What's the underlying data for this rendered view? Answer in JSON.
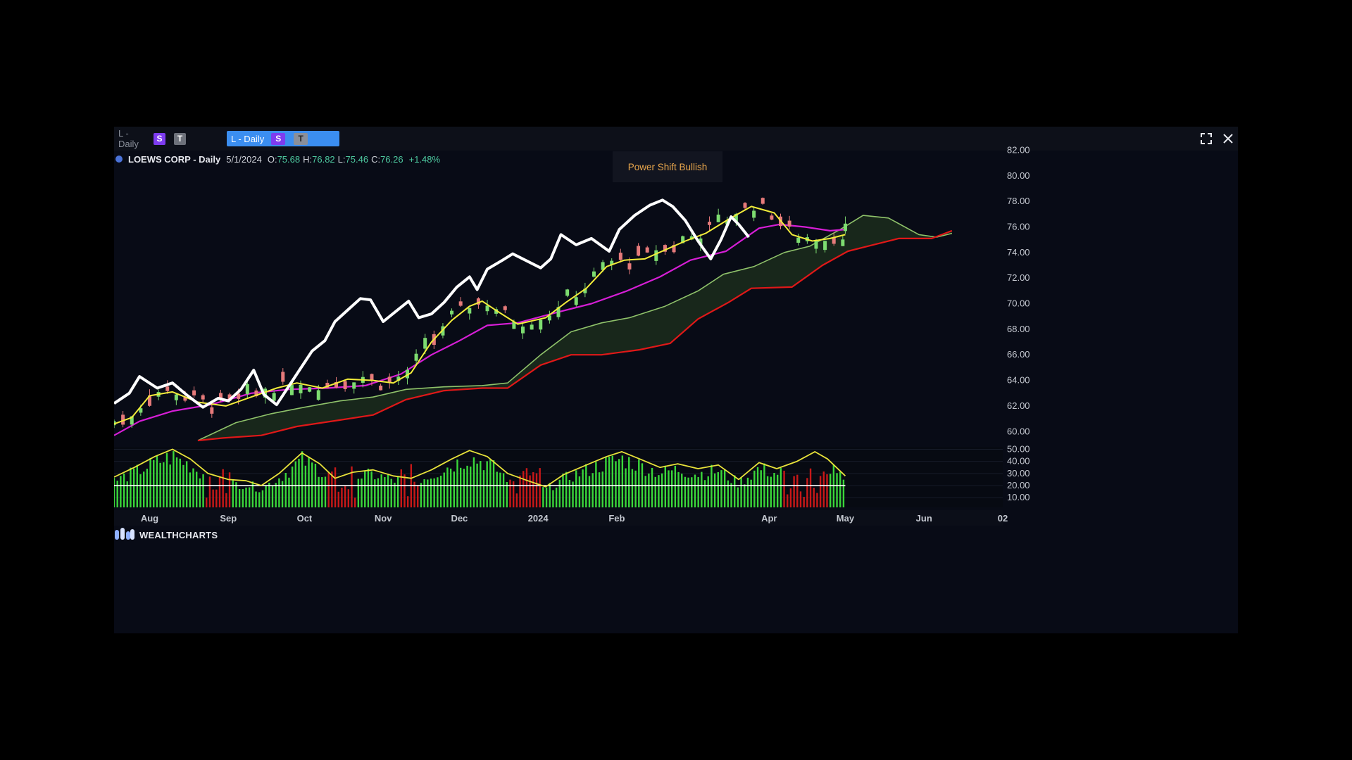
{
  "tabs": [
    {
      "label": "L - Daily",
      "badge_s": "S",
      "badge_t": "T",
      "active": false
    },
    {
      "label": "L - Daily",
      "badge_s": "S",
      "badge_t": "T",
      "active": true
    }
  ],
  "window_controls": {
    "maximize_icon": "maximize-icon",
    "close_icon": "close-icon"
  },
  "info": {
    "name": "LOEWS CORP - Daily",
    "date": "5/1/2024",
    "open_label": "O:",
    "open": "75.68",
    "high_label": "H:",
    "high": "76.82",
    "low_label": "L:",
    "low": "75.46",
    "close_label": "C:",
    "close": "76.26",
    "change": "+1.48%"
  },
  "signal_box": "Power Shift Bullish",
  "logo_text": "WEALTHCHARTS",
  "colors": {
    "background": "#080b16",
    "candle_up": "#7ddc70",
    "candle_down": "#e67a7a",
    "line_white": "#ffffff",
    "line_yellow": "#f2ec3a",
    "line_magenta": "#d61ed6",
    "cloud_upper": "#8fc26a",
    "cloud_lower": "#e01818",
    "cloud_fill": "#1b2a1c",
    "osc_yellow": "#e8e23a",
    "osc_green": "#3ad63a",
    "osc_red": "#c81818"
  },
  "chart_data": [
    {
      "type": "candlestick",
      "title": "",
      "x_ticks": [
        "Aug",
        "Sep",
        "Oct",
        "Nov",
        "Dec",
        "2024",
        "Feb",
        "Apr",
        "May",
        "Jun",
        "02"
      ],
      "y_ticks": [
        "82.00",
        "80.00",
        "78.00",
        "76.00",
        "74.00",
        "72.00",
        "70.00",
        "68.00",
        "66.00",
        "64.00",
        "62.00",
        "60.00"
      ],
      "ylim": [
        59.3,
        82.3
      ],
      "x_range": [
        "2023-07-18",
        "2024-07-02"
      ],
      "series": [
        {
          "style": "white-line",
          "points": [
            [
              "2023-07-18",
              62.2
            ],
            [
              "2023-07-24",
              63.0
            ],
            [
              "2023-07-28",
              64.3
            ],
            [
              "2023-08-04",
              63.4
            ],
            [
              "2023-08-10",
              63.8
            ],
            [
              "2023-08-16",
              62.8
            ],
            [
              "2023-08-22",
              61.9
            ],
            [
              "2023-08-28",
              62.6
            ],
            [
              "2023-09-01",
              62.4
            ],
            [
              "2023-09-06",
              63.3
            ],
            [
              "2023-09-11",
              64.8
            ],
            [
              "2023-09-15",
              62.9
            ],
            [
              "2023-09-20",
              62.1
            ],
            [
              "2023-09-25",
              63.6
            ],
            [
              "2023-09-29",
              64.8
            ],
            [
              "2023-10-04",
              66.3
            ],
            [
              "2023-10-09",
              67.1
            ],
            [
              "2023-10-13",
              68.6
            ],
            [
              "2023-10-18",
              69.5
            ],
            [
              "2023-10-23",
              70.4
            ],
            [
              "2023-10-27",
              70.3
            ],
            [
              "2023-11-01",
              68.6
            ],
            [
              "2023-11-06",
              69.4
            ],
            [
              "2023-11-11",
              70.2
            ],
            [
              "2023-11-15",
              68.9
            ],
            [
              "2023-11-20",
              69.2
            ],
            [
              "2023-11-25",
              70.1
            ],
            [
              "2023-11-30",
              71.3
            ],
            [
              "2023-12-05",
              72.1
            ],
            [
              "2023-12-08",
              71.1
            ],
            [
              "2023-12-12",
              72.7
            ],
            [
              "2023-12-18",
              73.4
            ],
            [
              "2023-12-22",
              73.9
            ],
            [
              "2024-01-02",
              72.8
            ],
            [
              "2024-01-06",
              73.5
            ],
            [
              "2024-01-10",
              75.4
            ],
            [
              "2024-01-16",
              74.6
            ],
            [
              "2024-01-22",
              75.1
            ],
            [
              "2024-01-29",
              74.1
            ],
            [
              "2024-02-02",
              75.8
            ],
            [
              "2024-02-08",
              76.9
            ],
            [
              "2024-02-14",
              77.7
            ],
            [
              "2024-02-19",
              78.1
            ],
            [
              "2024-02-23",
              77.6
            ],
            [
              "2024-02-28",
              76.5
            ],
            [
              "2024-03-04",
              74.9
            ],
            [
              "2024-03-09",
              73.5
            ],
            [
              "2024-03-13",
              75.0
            ],
            [
              "2024-03-17",
              76.8
            ],
            [
              "2024-03-20",
              76.2
            ],
            [
              "2024-03-24",
              75.2
            ]
          ]
        },
        {
          "style": "yellow-line",
          "points": [
            [
              "2023-07-18",
              60.6
            ],
            [
              "2023-07-25",
              61.1
            ],
            [
              "2023-08-01",
              62.8
            ],
            [
              "2023-08-10",
              63.1
            ],
            [
              "2023-08-20",
              62.3
            ],
            [
              "2023-08-31",
              62.0
            ],
            [
              "2023-09-10",
              62.7
            ],
            [
              "2023-09-20",
              63.4
            ],
            [
              "2023-09-28",
              63.8
            ],
            [
              "2023-10-08",
              63.4
            ],
            [
              "2023-10-18",
              64.1
            ],
            [
              "2023-10-28",
              64.0
            ],
            [
              "2023-11-05",
              63.8
            ],
            [
              "2023-11-12",
              64.6
            ],
            [
              "2023-11-20",
              67.0
            ],
            [
              "2023-11-28",
              68.7
            ],
            [
              "2023-12-05",
              69.8
            ],
            [
              "2023-12-10",
              70.2
            ],
            [
              "2023-12-16",
              69.4
            ],
            [
              "2023-12-24",
              68.4
            ],
            [
              "2024-01-04",
              68.9
            ],
            [
              "2024-01-12",
              70.1
            ],
            [
              "2024-01-20",
              71.2
            ],
            [
              "2024-01-28",
              72.9
            ],
            [
              "2024-02-04",
              73.4
            ],
            [
              "2024-02-12",
              73.5
            ],
            [
              "2024-02-20",
              74.2
            ],
            [
              "2024-02-28",
              74.9
            ],
            [
              "2024-03-07",
              75.5
            ],
            [
              "2024-03-16",
              76.6
            ],
            [
              "2024-03-25",
              77.6
            ],
            [
              "2024-04-03",
              77.1
            ],
            [
              "2024-04-10",
              75.4
            ],
            [
              "2024-04-18",
              74.9
            ],
            [
              "2024-04-25",
              75.1
            ],
            [
              "2024-05-01",
              75.4
            ]
          ]
        },
        {
          "style": "magenta-line",
          "points": [
            [
              "2023-07-18",
              59.7
            ],
            [
              "2023-07-28",
              60.8
            ],
            [
              "2023-08-10",
              61.6
            ],
            [
              "2023-08-25",
              62.1
            ],
            [
              "2023-09-10",
              63.0
            ],
            [
              "2023-09-25",
              63.3
            ],
            [
              "2023-10-10",
              63.4
            ],
            [
              "2023-10-25",
              63.6
            ],
            [
              "2023-11-08",
              64.5
            ],
            [
              "2023-11-20",
              66.0
            ],
            [
              "2023-12-01",
              67.1
            ],
            [
              "2023-12-12",
              68.3
            ],
            [
              "2023-12-24",
              68.5
            ],
            [
              "2024-01-08",
              69.3
            ],
            [
              "2024-01-22",
              70.0
            ],
            [
              "2024-02-05",
              71.0
            ],
            [
              "2024-02-18",
              72.1
            ],
            [
              "2024-03-01",
              73.4
            ],
            [
              "2024-03-15",
              74.1
            ],
            [
              "2024-03-28",
              75.9
            ],
            [
              "2024-04-05",
              76.2
            ],
            [
              "2024-04-15",
              76.0
            ],
            [
              "2024-04-25",
              75.7
            ],
            [
              "2024-05-01",
              75.8
            ]
          ]
        },
        {
          "style": "cloud-upper",
          "points": [
            [
              "2023-08-20",
              59.3
            ],
            [
              "2023-09-04",
              60.7
            ],
            [
              "2023-09-18",
              61.4
            ],
            [
              "2023-10-01",
              61.9
            ],
            [
              "2023-10-15",
              62.4
            ],
            [
              "2023-10-28",
              62.7
            ],
            [
              "2023-11-10",
              63.3
            ],
            [
              "2023-11-25",
              63.5
            ],
            [
              "2023-12-10",
              63.6
            ],
            [
              "2023-12-20",
              63.8
            ],
            [
              "2024-01-02",
              66.0
            ],
            [
              "2024-01-14",
              67.8
            ],
            [
              "2024-01-26",
              68.5
            ],
            [
              "2024-02-06",
              68.9
            ],
            [
              "2024-02-20",
              69.8
            ],
            [
              "2024-03-04",
              71.0
            ],
            [
              "2024-03-14",
              72.3
            ],
            [
              "2024-03-26",
              72.9
            ],
            [
              "2024-04-07",
              74.0
            ],
            [
              "2024-04-17",
              74.5
            ],
            [
              "2024-04-29",
              75.8
            ],
            [
              "2024-05-08",
              76.9
            ],
            [
              "2024-05-18",
              76.7
            ],
            [
              "2024-05-30",
              75.4
            ],
            [
              "2024-06-06",
              75.2
            ],
            [
              "2024-06-12",
              75.5
            ]
          ]
        },
        {
          "style": "cloud-lower",
          "points": [
            [
              "2023-08-20",
              59.3
            ],
            [
              "2023-08-30",
              59.5
            ],
            [
              "2023-09-14",
              59.7
            ],
            [
              "2023-09-28",
              60.4
            ],
            [
              "2023-10-15",
              60.9
            ],
            [
              "2023-10-28",
              61.3
            ],
            [
              "2023-11-10",
              62.5
            ],
            [
              "2023-11-25",
              63.2
            ],
            [
              "2023-12-10",
              63.4
            ],
            [
              "2023-12-20",
              63.4
            ],
            [
              "2024-01-02",
              65.2
            ],
            [
              "2024-01-14",
              66.0
            ],
            [
              "2024-01-26",
              66.0
            ],
            [
              "2024-02-10",
              66.4
            ],
            [
              "2024-02-22",
              66.9
            ],
            [
              "2024-03-04",
              68.8
            ],
            [
              "2024-03-16",
              70.1
            ],
            [
              "2024-03-25",
              71.2
            ],
            [
              "2024-04-10",
              71.3
            ],
            [
              "2024-04-22",
              73.0
            ],
            [
              "2024-05-02",
              74.1
            ],
            [
              "2024-05-12",
              74.6
            ],
            [
              "2024-05-22",
              75.1
            ],
            [
              "2024-06-04",
              75.1
            ],
            [
              "2024-06-12",
              75.7
            ]
          ]
        }
      ],
      "candles": {
        "period_days": 3.5,
        "start": "2023-07-18",
        "end": "2024-05-01",
        "last": {
          "date": "2024-05-01",
          "open": 75.68,
          "high": 76.82,
          "low": 75.46,
          "close": 76.26
        }
      }
    },
    {
      "type": "bar",
      "title": "",
      "y_ticks": [
        "50.00",
        "40.00",
        "30.00",
        "20.00",
        "10.00"
      ],
      "ylim": [
        2,
        52
      ],
      "baseline": 20,
      "series": [
        {
          "style": "yellow-line",
          "points": [
            [
              "2023-07-18",
              27
            ],
            [
              "2023-07-26",
              35
            ],
            [
              "2023-08-03",
              44
            ],
            [
              "2023-08-10",
              50
            ],
            [
              "2023-08-17",
              42
            ],
            [
              "2023-08-24",
              30
            ],
            [
              "2023-09-01",
              25
            ],
            [
              "2023-09-08",
              24
            ],
            [
              "2023-09-14",
              20
            ],
            [
              "2023-09-21",
              30
            ],
            [
              "2023-09-30",
              47
            ],
            [
              "2023-10-07",
              38
            ],
            [
              "2023-10-13",
              26
            ],
            [
              "2023-10-20",
              31
            ],
            [
              "2023-10-28",
              33
            ],
            [
              "2023-11-05",
              28
            ],
            [
              "2023-11-12",
              26
            ],
            [
              "2023-11-20",
              33
            ],
            [
              "2023-11-28",
              42
            ],
            [
              "2023-12-05",
              49
            ],
            [
              "2023-12-12",
              44
            ],
            [
              "2023-12-20",
              30
            ],
            [
              "2023-12-28",
              24
            ],
            [
              "2024-01-04",
              19
            ],
            [
              "2024-01-11",
              29
            ],
            [
              "2024-01-20",
              37
            ],
            [
              "2024-01-28",
              44
            ],
            [
              "2024-02-03",
              48
            ],
            [
              "2024-02-10",
              42
            ],
            [
              "2024-02-18",
              35
            ],
            [
              "2024-02-25",
              38
            ],
            [
              "2024-03-04",
              34
            ],
            [
              "2024-03-12",
              37
            ],
            [
              "2024-03-20",
              25
            ],
            [
              "2024-03-28",
              39
            ],
            [
              "2024-04-04",
              34
            ],
            [
              "2024-04-12",
              40
            ],
            [
              "2024-04-19",
              48
            ],
            [
              "2024-04-24",
              42
            ],
            [
              "2024-05-01",
              28
            ]
          ]
        },
        {
          "style": "histogram",
          "up_color": "green",
          "down_color": "red",
          "down_ranges": [
            [
              "2023-08-23",
              "2023-09-02"
            ],
            [
              "2023-10-10",
              "2023-10-21"
            ],
            [
              "2023-11-08",
              "2023-11-15"
            ],
            [
              "2023-12-20",
              "2024-01-02"
            ],
            [
              "2024-04-06",
              "2024-04-24"
            ]
          ]
        }
      ],
      "x_range": [
        "2023-07-18",
        "2024-05-01"
      ]
    }
  ]
}
